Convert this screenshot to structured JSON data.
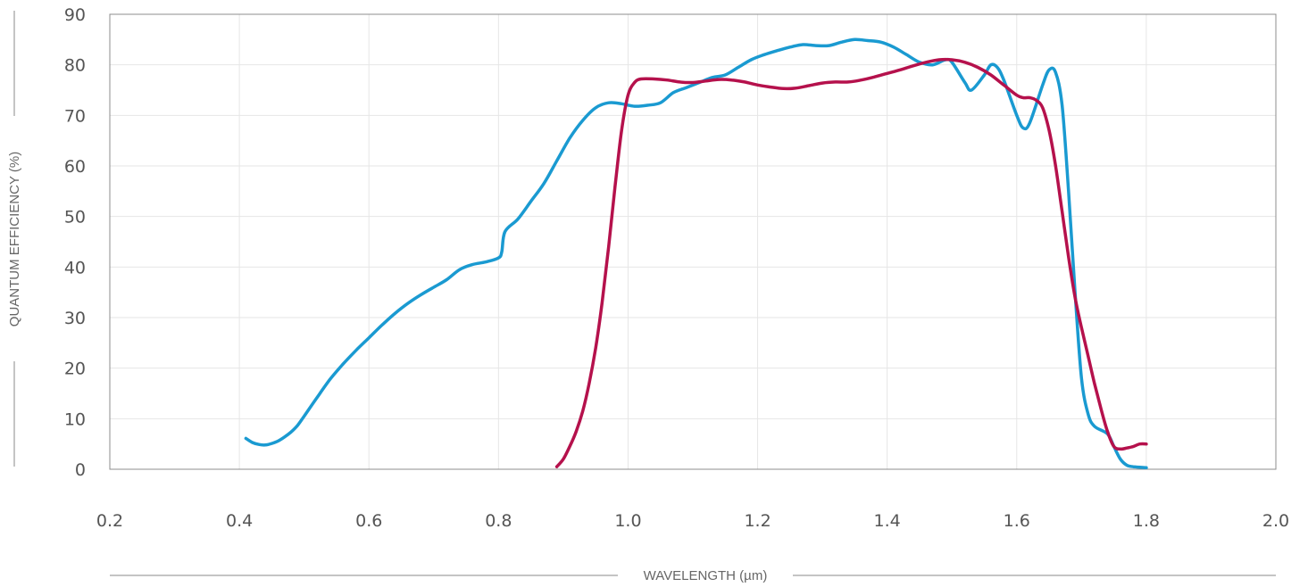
{
  "chart_data": {
    "type": "line",
    "xlabel": "WAVELENGTH (µm)",
    "ylabel": "QUANTUM EFFICIENCY (%)",
    "xlim": [
      0.2,
      2.0
    ],
    "ylim": [
      0,
      90
    ],
    "x_ticks": [
      "0.2",
      "0.4",
      "0.6",
      "0.8",
      "1.0",
      "1.2",
      "1.4",
      "1.6",
      "1.8",
      "2.0"
    ],
    "y_ticks": [
      "0",
      "10",
      "20",
      "30",
      "40",
      "50",
      "60",
      "70",
      "80",
      "90"
    ],
    "grid": true,
    "legend": "none",
    "series": [
      {
        "color": "#1a9ad1",
        "points": [
          [
            0.41,
            6.1
          ],
          [
            0.42,
            5.3
          ],
          [
            0.43,
            4.9
          ],
          [
            0.44,
            4.8
          ],
          [
            0.45,
            5.1
          ],
          [
            0.46,
            5.6
          ],
          [
            0.47,
            6.4
          ],
          [
            0.48,
            7.4
          ],
          [
            0.49,
            8.7
          ],
          [
            0.5,
            10.5
          ],
          [
            0.52,
            14.2
          ],
          [
            0.54,
            17.8
          ],
          [
            0.56,
            20.8
          ],
          [
            0.58,
            23.5
          ],
          [
            0.6,
            26.0
          ],
          [
            0.62,
            28.5
          ],
          [
            0.64,
            30.8
          ],
          [
            0.66,
            32.8
          ],
          [
            0.68,
            34.5
          ],
          [
            0.7,
            36.0
          ],
          [
            0.72,
            37.5
          ],
          [
            0.74,
            39.5
          ],
          [
            0.76,
            40.5
          ],
          [
            0.78,
            41.0
          ],
          [
            0.8,
            41.8
          ],
          [
            0.805,
            43.0
          ],
          [
            0.81,
            47.0
          ],
          [
            0.83,
            49.5
          ],
          [
            0.85,
            53.0
          ],
          [
            0.87,
            56.5
          ],
          [
            0.89,
            61.0
          ],
          [
            0.91,
            65.5
          ],
          [
            0.93,
            69.0
          ],
          [
            0.95,
            71.5
          ],
          [
            0.97,
            72.5
          ],
          [
            0.99,
            72.3
          ],
          [
            1.01,
            71.8
          ],
          [
            1.03,
            72.0
          ],
          [
            1.05,
            72.5
          ],
          [
            1.07,
            74.5
          ],
          [
            1.09,
            75.5
          ],
          [
            1.11,
            76.5
          ],
          [
            1.13,
            77.5
          ],
          [
            1.15,
            78.0
          ],
          [
            1.17,
            79.5
          ],
          [
            1.19,
            81.0
          ],
          [
            1.21,
            82.0
          ],
          [
            1.23,
            82.8
          ],
          [
            1.25,
            83.5
          ],
          [
            1.27,
            84.0
          ],
          [
            1.29,
            83.8
          ],
          [
            1.31,
            83.8
          ],
          [
            1.33,
            84.5
          ],
          [
            1.35,
            85.0
          ],
          [
            1.37,
            84.8
          ],
          [
            1.39,
            84.5
          ],
          [
            1.41,
            83.5
          ],
          [
            1.43,
            82.0
          ],
          [
            1.45,
            80.5
          ],
          [
            1.47,
            80.0
          ],
          [
            1.49,
            81.0
          ],
          [
            1.5,
            80.5
          ],
          [
            1.52,
            76.5
          ],
          [
            1.53,
            75.0
          ],
          [
            1.55,
            78.0
          ],
          [
            1.56,
            80.0
          ],
          [
            1.57,
            79.5
          ],
          [
            1.58,
            77.0
          ],
          [
            1.6,
            70.0
          ],
          [
            1.61,
            67.5
          ],
          [
            1.62,
            68.5
          ],
          [
            1.64,
            76.0
          ],
          [
            1.65,
            79.0
          ],
          [
            1.66,
            78.5
          ],
          [
            1.67,
            72.0
          ],
          [
            1.68,
            55.0
          ],
          [
            1.69,
            35.0
          ],
          [
            1.7,
            18.0
          ],
          [
            1.71,
            11.0
          ],
          [
            1.72,
            8.5
          ],
          [
            1.74,
            7.0
          ],
          [
            1.75,
            4.5
          ],
          [
            1.76,
            2.0
          ],
          [
            1.77,
            0.8
          ],
          [
            1.78,
            0.5
          ],
          [
            1.8,
            0.3
          ]
        ]
      },
      {
        "color": "#b5114c",
        "points": [
          [
            0.89,
            0.5
          ],
          [
            0.9,
            2.0
          ],
          [
            0.91,
            4.5
          ],
          [
            0.92,
            7.5
          ],
          [
            0.93,
            11.5
          ],
          [
            0.94,
            17.0
          ],
          [
            0.95,
            24.0
          ],
          [
            0.96,
            33.0
          ],
          [
            0.97,
            44.0
          ],
          [
            0.98,
            56.0
          ],
          [
            0.99,
            67.0
          ],
          [
            1.0,
            74.0
          ],
          [
            1.01,
            76.5
          ],
          [
            1.02,
            77.2
          ],
          [
            1.04,
            77.2
          ],
          [
            1.06,
            77.0
          ],
          [
            1.08,
            76.6
          ],
          [
            1.1,
            76.5
          ],
          [
            1.12,
            76.8
          ],
          [
            1.14,
            77.1
          ],
          [
            1.16,
            77.0
          ],
          [
            1.18,
            76.6
          ],
          [
            1.2,
            76.0
          ],
          [
            1.22,
            75.6
          ],
          [
            1.24,
            75.3
          ],
          [
            1.26,
            75.4
          ],
          [
            1.28,
            75.9
          ],
          [
            1.3,
            76.4
          ],
          [
            1.32,
            76.6
          ],
          [
            1.34,
            76.6
          ],
          [
            1.36,
            77.0
          ],
          [
            1.38,
            77.6
          ],
          [
            1.4,
            78.3
          ],
          [
            1.42,
            79.0
          ],
          [
            1.44,
            79.8
          ],
          [
            1.46,
            80.5
          ],
          [
            1.48,
            81.0
          ],
          [
            1.5,
            81.0
          ],
          [
            1.52,
            80.5
          ],
          [
            1.54,
            79.5
          ],
          [
            1.56,
            78.0
          ],
          [
            1.58,
            76.0
          ],
          [
            1.6,
            74.0
          ],
          [
            1.61,
            73.5
          ],
          [
            1.62,
            73.5
          ],
          [
            1.63,
            73.0
          ],
          [
            1.64,
            71.5
          ],
          [
            1.65,
            67.0
          ],
          [
            1.66,
            60.0
          ],
          [
            1.67,
            51.0
          ],
          [
            1.68,
            42.0
          ],
          [
            1.69,
            34.0
          ],
          [
            1.7,
            28.0
          ],
          [
            1.71,
            22.5
          ],
          [
            1.72,
            17.0
          ],
          [
            1.73,
            12.0
          ],
          [
            1.74,
            7.5
          ],
          [
            1.75,
            4.5
          ],
          [
            1.76,
            4.0
          ],
          [
            1.77,
            4.2
          ],
          [
            1.78,
            4.5
          ],
          [
            1.79,
            5.0
          ],
          [
            1.8,
            5.0
          ]
        ]
      }
    ]
  }
}
